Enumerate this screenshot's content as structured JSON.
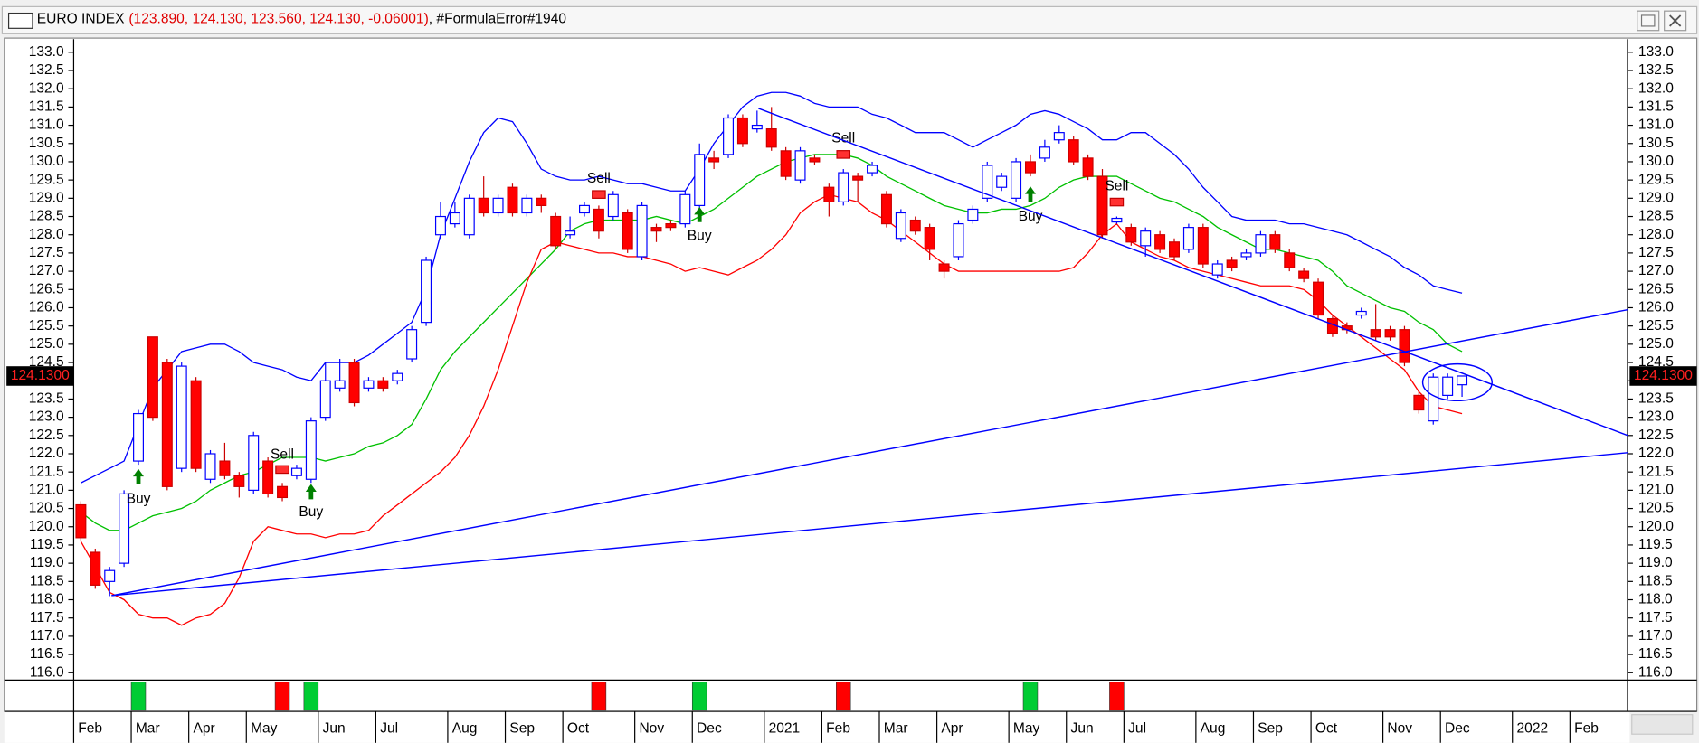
{
  "chart_data": {
    "type": "candlestick",
    "title": "EURO INDEX",
    "subtitle": "(123.890, 124.130, 123.560, 124.130, -0.06001)",
    "status": ", #FormulaError#1940",
    "last_price": {
      "value": 124.13,
      "label": "124.1300"
    },
    "up_color": "#ffffff",
    "up_edge": "#0000ff",
    "down_color": "#ff0000",
    "down_edge": "#cc0000",
    "ylim": [
      115.8,
      133.3
    ],
    "yticks": [
      {
        "value": 116,
        "label": "116.0"
      },
      {
        "value": 116.5,
        "label": "116.5"
      },
      {
        "value": 117,
        "label": "117.0"
      },
      {
        "value": 117.5,
        "label": "117.5"
      },
      {
        "value": 118,
        "label": "118.0"
      },
      {
        "value": 118.5,
        "label": "118.5"
      },
      {
        "value": 119,
        "label": "119.0"
      },
      {
        "value": 119.5,
        "label": "119.5"
      },
      {
        "value": 120,
        "label": "120.0"
      },
      {
        "value": 120.5,
        "label": "120.5"
      },
      {
        "value": 121,
        "label": "121.0"
      },
      {
        "value": 121.5,
        "label": "121.5"
      },
      {
        "value": 122,
        "label": "122.0"
      },
      {
        "value": 122.5,
        "label": "122.5"
      },
      {
        "value": 123,
        "label": "123.0"
      },
      {
        "value": 123.5,
        "label": "123.5"
      },
      {
        "value": 124,
        "label": "124.0"
      },
      {
        "value": 124.5,
        "label": "124.5"
      },
      {
        "value": 125,
        "label": "125.0"
      },
      {
        "value": 125.5,
        "label": "125.5"
      },
      {
        "value": 126,
        "label": "126.0"
      },
      {
        "value": 126.5,
        "label": "126.5"
      },
      {
        "value": 127,
        "label": "127.0"
      },
      {
        "value": 127.5,
        "label": "127.5"
      },
      {
        "value": 128,
        "label": "128.0"
      },
      {
        "value": 128.5,
        "label": "128.5"
      },
      {
        "value": 129,
        "label": "129.0"
      },
      {
        "value": 129.5,
        "label": "129.5"
      },
      {
        "value": 130,
        "label": "130.0"
      },
      {
        "value": 130.5,
        "label": "130.5"
      },
      {
        "value": 131,
        "label": "131.0"
      },
      {
        "value": 131.5,
        "label": "131.5"
      },
      {
        "value": 132,
        "label": "132.0"
      },
      {
        "value": 132.5,
        "label": "132.5"
      },
      {
        "value": 133,
        "label": "133.0"
      }
    ],
    "categories": [
      "Feb",
      null,
      null,
      null,
      "Mar",
      null,
      null,
      null,
      "Apr",
      null,
      null,
      null,
      "May",
      null,
      null,
      null,
      null,
      "Jun",
      null,
      null,
      null,
      "Jul",
      null,
      null,
      null,
      null,
      "Aug",
      null,
      null,
      null,
      "Sep",
      null,
      null,
      null,
      "Oct",
      null,
      null,
      null,
      null,
      "Nov",
      null,
      null,
      null,
      "Dec",
      null,
      null,
      null,
      null,
      "2021",
      null,
      null,
      null,
      "Feb",
      null,
      null,
      null,
      "Mar",
      null,
      null,
      null,
      "Apr",
      null,
      null,
      null,
      null,
      "May",
      null,
      null,
      null,
      "Jun",
      null,
      null,
      null,
      "Jul",
      null,
      null,
      null,
      null,
      "Aug",
      null,
      null,
      null,
      "Sep",
      null,
      null,
      null,
      "Oct",
      null,
      null,
      null,
      null,
      "Nov",
      null,
      null,
      null,
      "Dec",
      null,
      null,
      null,
      null,
      "2022",
      null,
      null,
      null,
      "Feb",
      null,
      null,
      null
    ],
    "open": [
      120.6,
      119.3,
      118.5,
      119.0,
      121.8,
      125.2,
      124.5,
      121.6,
      124.0,
      121.3,
      121.8,
      121.4,
      121.0,
      121.8,
      121.1,
      121.4,
      121.3,
      123.0,
      123.8,
      124.5,
      123.8,
      124.0,
      124.0,
      124.6,
      125.6,
      128.0,
      128.3,
      128.0,
      129.0,
      128.6,
      129.3,
      128.6,
      129.0,
      128.5,
      128.0,
      128.6,
      128.7,
      128.5,
      128.6,
      127.4,
      128.2,
      128.3,
      128.3,
      128.8,
      130.1,
      130.2,
      131.2,
      130.9,
      130.9,
      130.3,
      129.5,
      130.1,
      129.3,
      128.9,
      129.6,
      129.7,
      129.1,
      127.9,
      128.4,
      128.2,
      127.2,
      127.4,
      128.4,
      129.0,
      129.3,
      129.0,
      130.0,
      130.1,
      130.6,
      130.6,
      130.1,
      129.6,
      128.35,
      128.2,
      127.7,
      128.0,
      127.8,
      127.6,
      128.2,
      126.9,
      127.3,
      127.4,
      127.5,
      128.0,
      127.5,
      127.0,
      126.7,
      125.7,
      125.5,
      125.8,
      125.4,
      125.4,
      125.4,
      123.6,
      122.9,
      123.6,
      123.89,
      null,
      null,
      null,
      null,
      null,
      null,
      null,
      null,
      null,
      null,
      null
    ],
    "high": [
      120.7,
      119.4,
      118.9,
      121.0,
      123.2,
      125.2,
      124.6,
      124.5,
      124.1,
      122.1,
      122.3,
      121.5,
      122.6,
      121.9,
      121.2,
      121.7,
      123.0,
      124.5,
      124.6,
      124.6,
      124.1,
      124.1,
      124.3,
      125.5,
      127.4,
      128.9,
      128.9,
      129.1,
      129.6,
      129.1,
      129.4,
      129.1,
      129.1,
      128.6,
      128.5,
      128.9,
      128.8,
      129.2,
      128.7,
      128.9,
      128.3,
      128.4,
      129.2,
      130.5,
      130.3,
      131.3,
      131.3,
      131.4,
      131.5,
      130.4,
      130.4,
      130.2,
      129.4,
      129.8,
      129.7,
      130.0,
      129.2,
      128.7,
      128.5,
      128.3,
      127.3,
      128.4,
      128.8,
      130.0,
      129.7,
      130.1,
      130.2,
      130.6,
      131.0,
      130.7,
      130.2,
      129.8,
      128.5,
      128.3,
      128.2,
      128.1,
      127.9,
      128.3,
      128.3,
      127.3,
      127.4,
      127.6,
      128.1,
      128.1,
      127.6,
      127.1,
      126.8,
      125.8,
      125.6,
      126.0,
      126.1,
      125.5,
      125.5,
      123.7,
      124.2,
      124.2,
      124.13,
      null,
      null,
      null,
      null,
      null,
      null,
      null,
      null,
      null,
      null,
      null
    ],
    "low": [
      119.6,
      118.3,
      118.1,
      118.9,
      121.7,
      122.9,
      121.0,
      121.5,
      121.5,
      121.2,
      121.3,
      120.8,
      120.9,
      120.8,
      120.7,
      121.3,
      121.2,
      122.9,
      123.7,
      123.3,
      123.7,
      123.7,
      123.9,
      124.5,
      125.5,
      127.9,
      128.2,
      127.9,
      128.5,
      128.5,
      128.5,
      128.5,
      128.6,
      127.6,
      127.9,
      128.5,
      127.9,
      128.4,
      127.5,
      127.3,
      127.8,
      128.1,
      128.2,
      128.7,
      129.8,
      130.1,
      130.4,
      130.8,
      130.3,
      129.5,
      129.4,
      129.9,
      128.5,
      128.8,
      128.9,
      129.6,
      128.2,
      127.8,
      128.0,
      127.3,
      126.8,
      127.3,
      128.3,
      128.9,
      129.2,
      128.9,
      129.6,
      130.0,
      130.5,
      129.9,
      129.5,
      127.9,
      128.3,
      127.7,
      127.4,
      127.5,
      127.3,
      127.5,
      127.1,
      126.8,
      127.0,
      127.3,
      127.4,
      127.5,
      127.0,
      126.7,
      125.7,
      125.2,
      125.3,
      125.7,
      125.1,
      125.1,
      124.4,
      123.1,
      122.8,
      123.5,
      123.56,
      null,
      null,
      null,
      null,
      null,
      null,
      null,
      null,
      null,
      null,
      null
    ],
    "close": [
      119.7,
      118.4,
      118.8,
      120.9,
      123.1,
      123.0,
      121.1,
      124.4,
      121.6,
      122.0,
      121.4,
      121.1,
      122.5,
      120.9,
      120.8,
      121.6,
      122.9,
      124.0,
      124.0,
      123.4,
      124.0,
      123.8,
      124.2,
      125.4,
      127.3,
      128.5,
      128.6,
      129.0,
      128.6,
      129.0,
      128.6,
      129.0,
      128.8,
      127.7,
      128.1,
      128.8,
      128.1,
      129.1,
      127.6,
      128.8,
      128.1,
      128.2,
      129.1,
      130.2,
      130.0,
      131.2,
      130.5,
      131.0,
      130.4,
      129.6,
      130.3,
      130.0,
      128.9,
      129.7,
      129.5,
      129.9,
      128.3,
      128.6,
      128.1,
      127.6,
      127.0,
      128.3,
      128.7,
      129.9,
      129.6,
      130.0,
      129.7,
      130.4,
      130.8,
      130.0,
      129.6,
      128.0,
      128.45,
      127.8,
      128.1,
      127.6,
      127.4,
      128.2,
      127.2,
      127.2,
      127.1,
      127.5,
      128.0,
      127.6,
      127.1,
      126.8,
      125.8,
      125.3,
      125.4,
      125.9,
      125.2,
      125.2,
      124.5,
      123.2,
      124.1,
      124.1,
      124.13,
      null,
      null,
      null,
      null,
      null,
      null,
      null,
      null,
      null,
      null,
      null
    ],
    "series": [
      {
        "color": "#0000ff",
        "values": [
          121.2,
          121.4,
          121.6,
          121.8,
          122.8,
          123.8,
          124.3,
          124.8,
          124.9,
          125.0,
          125.0,
          124.8,
          124.5,
          124.4,
          124.3,
          124.1,
          124.0,
          124.5,
          124.5,
          124.5,
          124.7,
          125.0,
          125.3,
          125.6,
          126.5,
          128.0,
          129.0,
          130.0,
          130.8,
          131.2,
          131.1,
          130.5,
          129.8,
          129.6,
          129.5,
          129.5,
          129.6,
          129.5,
          129.4,
          129.4,
          129.3,
          129.2,
          129.2,
          129.8,
          130.5,
          131.0,
          131.5,
          131.8,
          131.9,
          131.9,
          131.8,
          131.6,
          131.5,
          131.5,
          131.5,
          131.3,
          131.2,
          131.0,
          130.8,
          130.8,
          130.8,
          130.6,
          130.4,
          130.6,
          130.8,
          131.0,
          131.3,
          131.4,
          131.3,
          131.1,
          130.9,
          130.6,
          130.6,
          130.8,
          130.8,
          130.5,
          130.2,
          129.8,
          129.3,
          128.9,
          128.5,
          128.4,
          128.4,
          128.4,
          128.3,
          128.3,
          128.2,
          128.1,
          128.0,
          127.8,
          127.6,
          127.4,
          127.1,
          126.9,
          126.6,
          126.5,
          126.4,
          null,
          null,
          null,
          null,
          null,
          null,
          null,
          null,
          null,
          null,
          null
        ]
      },
      {
        "color": "#00c000",
        "values": [
          120.4,
          120.1,
          119.9,
          119.9,
          120.1,
          120.3,
          120.4,
          120.5,
          120.7,
          121.0,
          121.2,
          121.4,
          121.5,
          121.7,
          121.9,
          121.9,
          121.9,
          121.8,
          121.9,
          122.0,
          122.2,
          122.3,
          122.5,
          122.8,
          123.5,
          124.3,
          124.8,
          125.2,
          125.6,
          126.0,
          126.4,
          126.8,
          127.2,
          127.6,
          128.1,
          128.3,
          128.4,
          128.4,
          128.4,
          128.4,
          128.5,
          128.4,
          128.3,
          128.5,
          128.7,
          129.0,
          129.3,
          129.6,
          129.8,
          130.0,
          130.1,
          130.2,
          130.2,
          130.2,
          130.1,
          129.9,
          129.6,
          129.4,
          129.2,
          129.0,
          128.8,
          128.7,
          128.6,
          128.6,
          128.7,
          128.7,
          128.8,
          129.0,
          129.3,
          129.5,
          129.6,
          129.6,
          129.6,
          129.4,
          129.2,
          129.0,
          128.9,
          128.7,
          128.5,
          128.2,
          128.0,
          127.8,
          127.6,
          127.6,
          127.5,
          127.4,
          127.3,
          127.0,
          126.6,
          126.4,
          126.2,
          126.0,
          125.9,
          125.6,
          125.4,
          125.0,
          124.8,
          null,
          null,
          null,
          null,
          null,
          null,
          null,
          null,
          null,
          null,
          null
        ]
      },
      {
        "color": "#ff0000",
        "values": [
          119.6,
          118.9,
          118.2,
          118.0,
          117.6,
          117.5,
          117.5,
          117.3,
          117.5,
          117.6,
          117.9,
          118.6,
          119.6,
          120.0,
          119.9,
          119.8,
          119.8,
          119.7,
          119.8,
          119.8,
          119.9,
          120.3,
          120.6,
          120.9,
          121.2,
          121.5,
          121.9,
          122.5,
          123.3,
          124.3,
          125.5,
          126.7,
          127.6,
          127.8,
          127.7,
          127.6,
          127.5,
          127.5,
          127.4,
          127.4,
          127.3,
          127.2,
          127.0,
          127.1,
          127.0,
          126.9,
          127.1,
          127.3,
          127.6,
          128.0,
          128.6,
          128.9,
          129.1,
          129.0,
          128.9,
          128.6,
          128.4,
          128.1,
          127.8,
          127.5,
          127.2,
          127.0,
          127.0,
          127.0,
          127.0,
          127.0,
          127.0,
          127.0,
          127.0,
          127.1,
          127.5,
          128.0,
          128.3,
          127.8,
          127.6,
          127.4,
          127.3,
          127.1,
          127.0,
          126.9,
          126.8,
          126.7,
          126.6,
          126.6,
          126.6,
          126.5,
          126.2,
          125.8,
          125.5,
          125.2,
          124.9,
          124.6,
          124.3,
          123.7,
          123.3,
          123.2,
          123.1,
          null,
          null,
          null,
          null,
          null,
          null,
          null,
          null,
          null,
          null,
          null
        ]
      }
    ],
    "annotations": [
      "Buy",
      "Sell",
      "Buy",
      "Sell",
      "Buy",
      "Sell",
      "Buy",
      "Sell"
    ]
  }
}
